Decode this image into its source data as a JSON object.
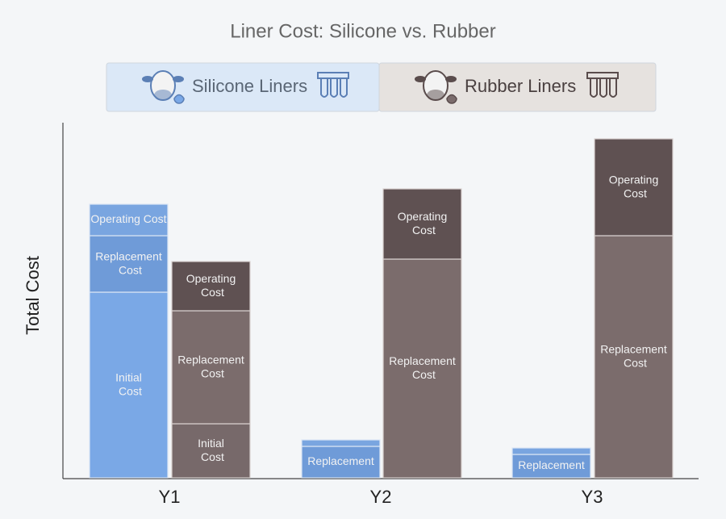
{
  "chart_data": {
    "type": "grouped-stacked-bar",
    "title": "Liner Cost: Silicone vs. Rubber",
    "y_label": "Total Cost",
    "categories": [
      "Y1",
      "Y2",
      "Y3"
    ],
    "ylim": [
      0,
      442
    ],
    "groups": [
      {
        "name": "Silicone Liners",
        "color": "#dbe8f7",
        "segments": [
          {
            "labels": [
              "Initial Cost",
              null,
              null
            ],
            "values": [
              230,
              null,
              null
            ],
            "color": "#7aa8e6"
          },
          {
            "labels": [
              "Replacement Cost",
              "Replacement",
              "Replacement"
            ],
            "values": [
              70,
              39,
              29
            ],
            "color": "#6f9bd8"
          },
          {
            "labels": [
              "Operating Cost",
              null,
              null
            ],
            "values": [
              39,
              8,
              8
            ],
            "color": "#79a5e0"
          }
        ]
      },
      {
        "name": "Rubber Liners",
        "color": "#e6e2df",
        "segments": [
          {
            "labels": [
              "Initial Cost",
              null,
              null
            ],
            "values": [
              67,
              null,
              null
            ],
            "color": "#77696a"
          },
          {
            "labels": [
              "Replacement Cost",
              "Replacement Cost",
              "Replacement Cost"
            ],
            "values": [
              140,
              271,
              300
            ],
            "color": "#7b6c6c"
          },
          {
            "labels": [
              "Operating Cost",
              "Operating Cost",
              "Operating Cost"
            ],
            "values": [
              61,
              87,
              120
            ],
            "color": "#5f5152"
          }
        ]
      }
    ]
  }
}
